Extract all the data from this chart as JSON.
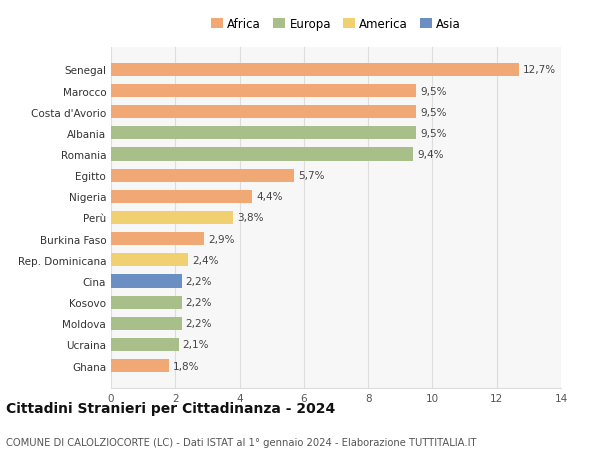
{
  "countries": [
    "Ghana",
    "Ucraina",
    "Moldova",
    "Kosovo",
    "Cina",
    "Rep. Dominicana",
    "Burkina Faso",
    "Perù",
    "Nigeria",
    "Egitto",
    "Romania",
    "Albania",
    "Costa d'Avorio",
    "Marocco",
    "Senegal"
  ],
  "values": [
    1.8,
    2.1,
    2.2,
    2.2,
    2.2,
    2.4,
    2.9,
    3.8,
    4.4,
    5.7,
    9.4,
    9.5,
    9.5,
    9.5,
    12.7
  ],
  "labels": [
    "1,8%",
    "2,1%",
    "2,2%",
    "2,2%",
    "2,2%",
    "2,4%",
    "2,9%",
    "3,8%",
    "4,4%",
    "5,7%",
    "9,4%",
    "9,5%",
    "9,5%",
    "9,5%",
    "12,7%"
  ],
  "colors": [
    "#f0a875",
    "#a8bf8a",
    "#a8bf8a",
    "#a8bf8a",
    "#6b8fc2",
    "#f0d070",
    "#f0a875",
    "#f0d070",
    "#f0a875",
    "#f0a875",
    "#a8bf8a",
    "#a8bf8a",
    "#f0a875",
    "#f0a875",
    "#f0a875"
  ],
  "legend": {
    "Africa": "#f0a875",
    "Europa": "#a8bf8a",
    "America": "#f0d070",
    "Asia": "#6b8fc2"
  },
  "xlim": [
    0,
    14
  ],
  "xticks": [
    0,
    2,
    4,
    6,
    8,
    10,
    12,
    14
  ],
  "title": "Cittadini Stranieri per Cittadinanza - 2024",
  "subtitle": "COMUNE DI CALOLZIOCORTE (LC) - Dati ISTAT al 1° gennaio 2024 - Elaborazione TUTTITALIA.IT",
  "background_color": "#ffffff",
  "plot_bg_color": "#f7f7f7",
  "grid_color": "#dddddd",
  "bar_height": 0.62,
  "label_fontsize": 7.5,
  "tick_fontsize": 7.5,
  "title_fontsize": 10,
  "subtitle_fontsize": 7.2,
  "legend_fontsize": 8.5
}
